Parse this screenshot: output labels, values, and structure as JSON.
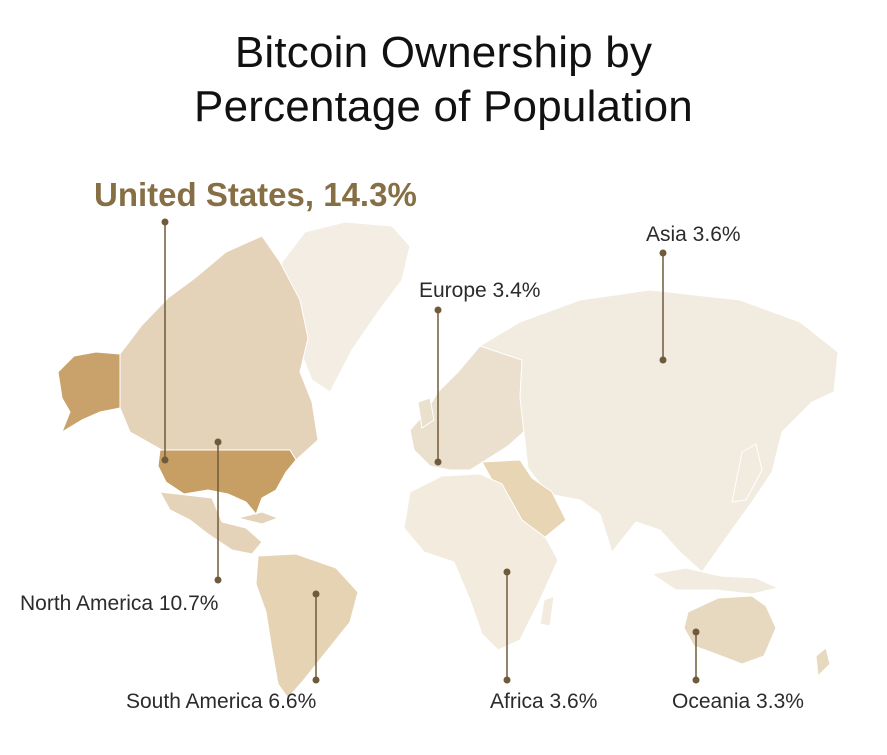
{
  "title": {
    "line1": "Bitcoin Ownership by",
    "line2": "Percentage of Population"
  },
  "colors": {
    "accent": "#866e45",
    "us": "#c79f64",
    "alaska": "#c9a16a",
    "north_america": "#e5d3b9",
    "south_america": "#e6d3b4",
    "europe": "#ebdfcd",
    "asia": "#f2ebdf",
    "africa": "#f2ebde",
    "oceania": "#e7d8c0",
    "greenland": "#f3ede3",
    "middle_east": "#e8d5b4",
    "leader": "#6f5b3b"
  },
  "chart_data": {
    "type": "choropleth-map",
    "title": "Bitcoin Ownership by Percentage of Population",
    "highlight": {
      "name": "United States",
      "value": 14.3,
      "unit": "%",
      "label": "United States, 14.3%"
    },
    "regions": [
      {
        "name": "North America",
        "value": 10.7,
        "label": "North America 10.7%"
      },
      {
        "name": "South America",
        "value": 6.6,
        "label": "South America 6.6%"
      },
      {
        "name": "Europe",
        "value": 3.4,
        "label": "Europe 3.4%"
      },
      {
        "name": "Asia",
        "value": 3.6,
        "label": "Asia 3.6%"
      },
      {
        "name": "Africa",
        "value": 3.6,
        "label": "Africa 3.6%"
      },
      {
        "name": "Oceania",
        "value": 3.3,
        "label": "Oceania 3.3%"
      }
    ]
  }
}
